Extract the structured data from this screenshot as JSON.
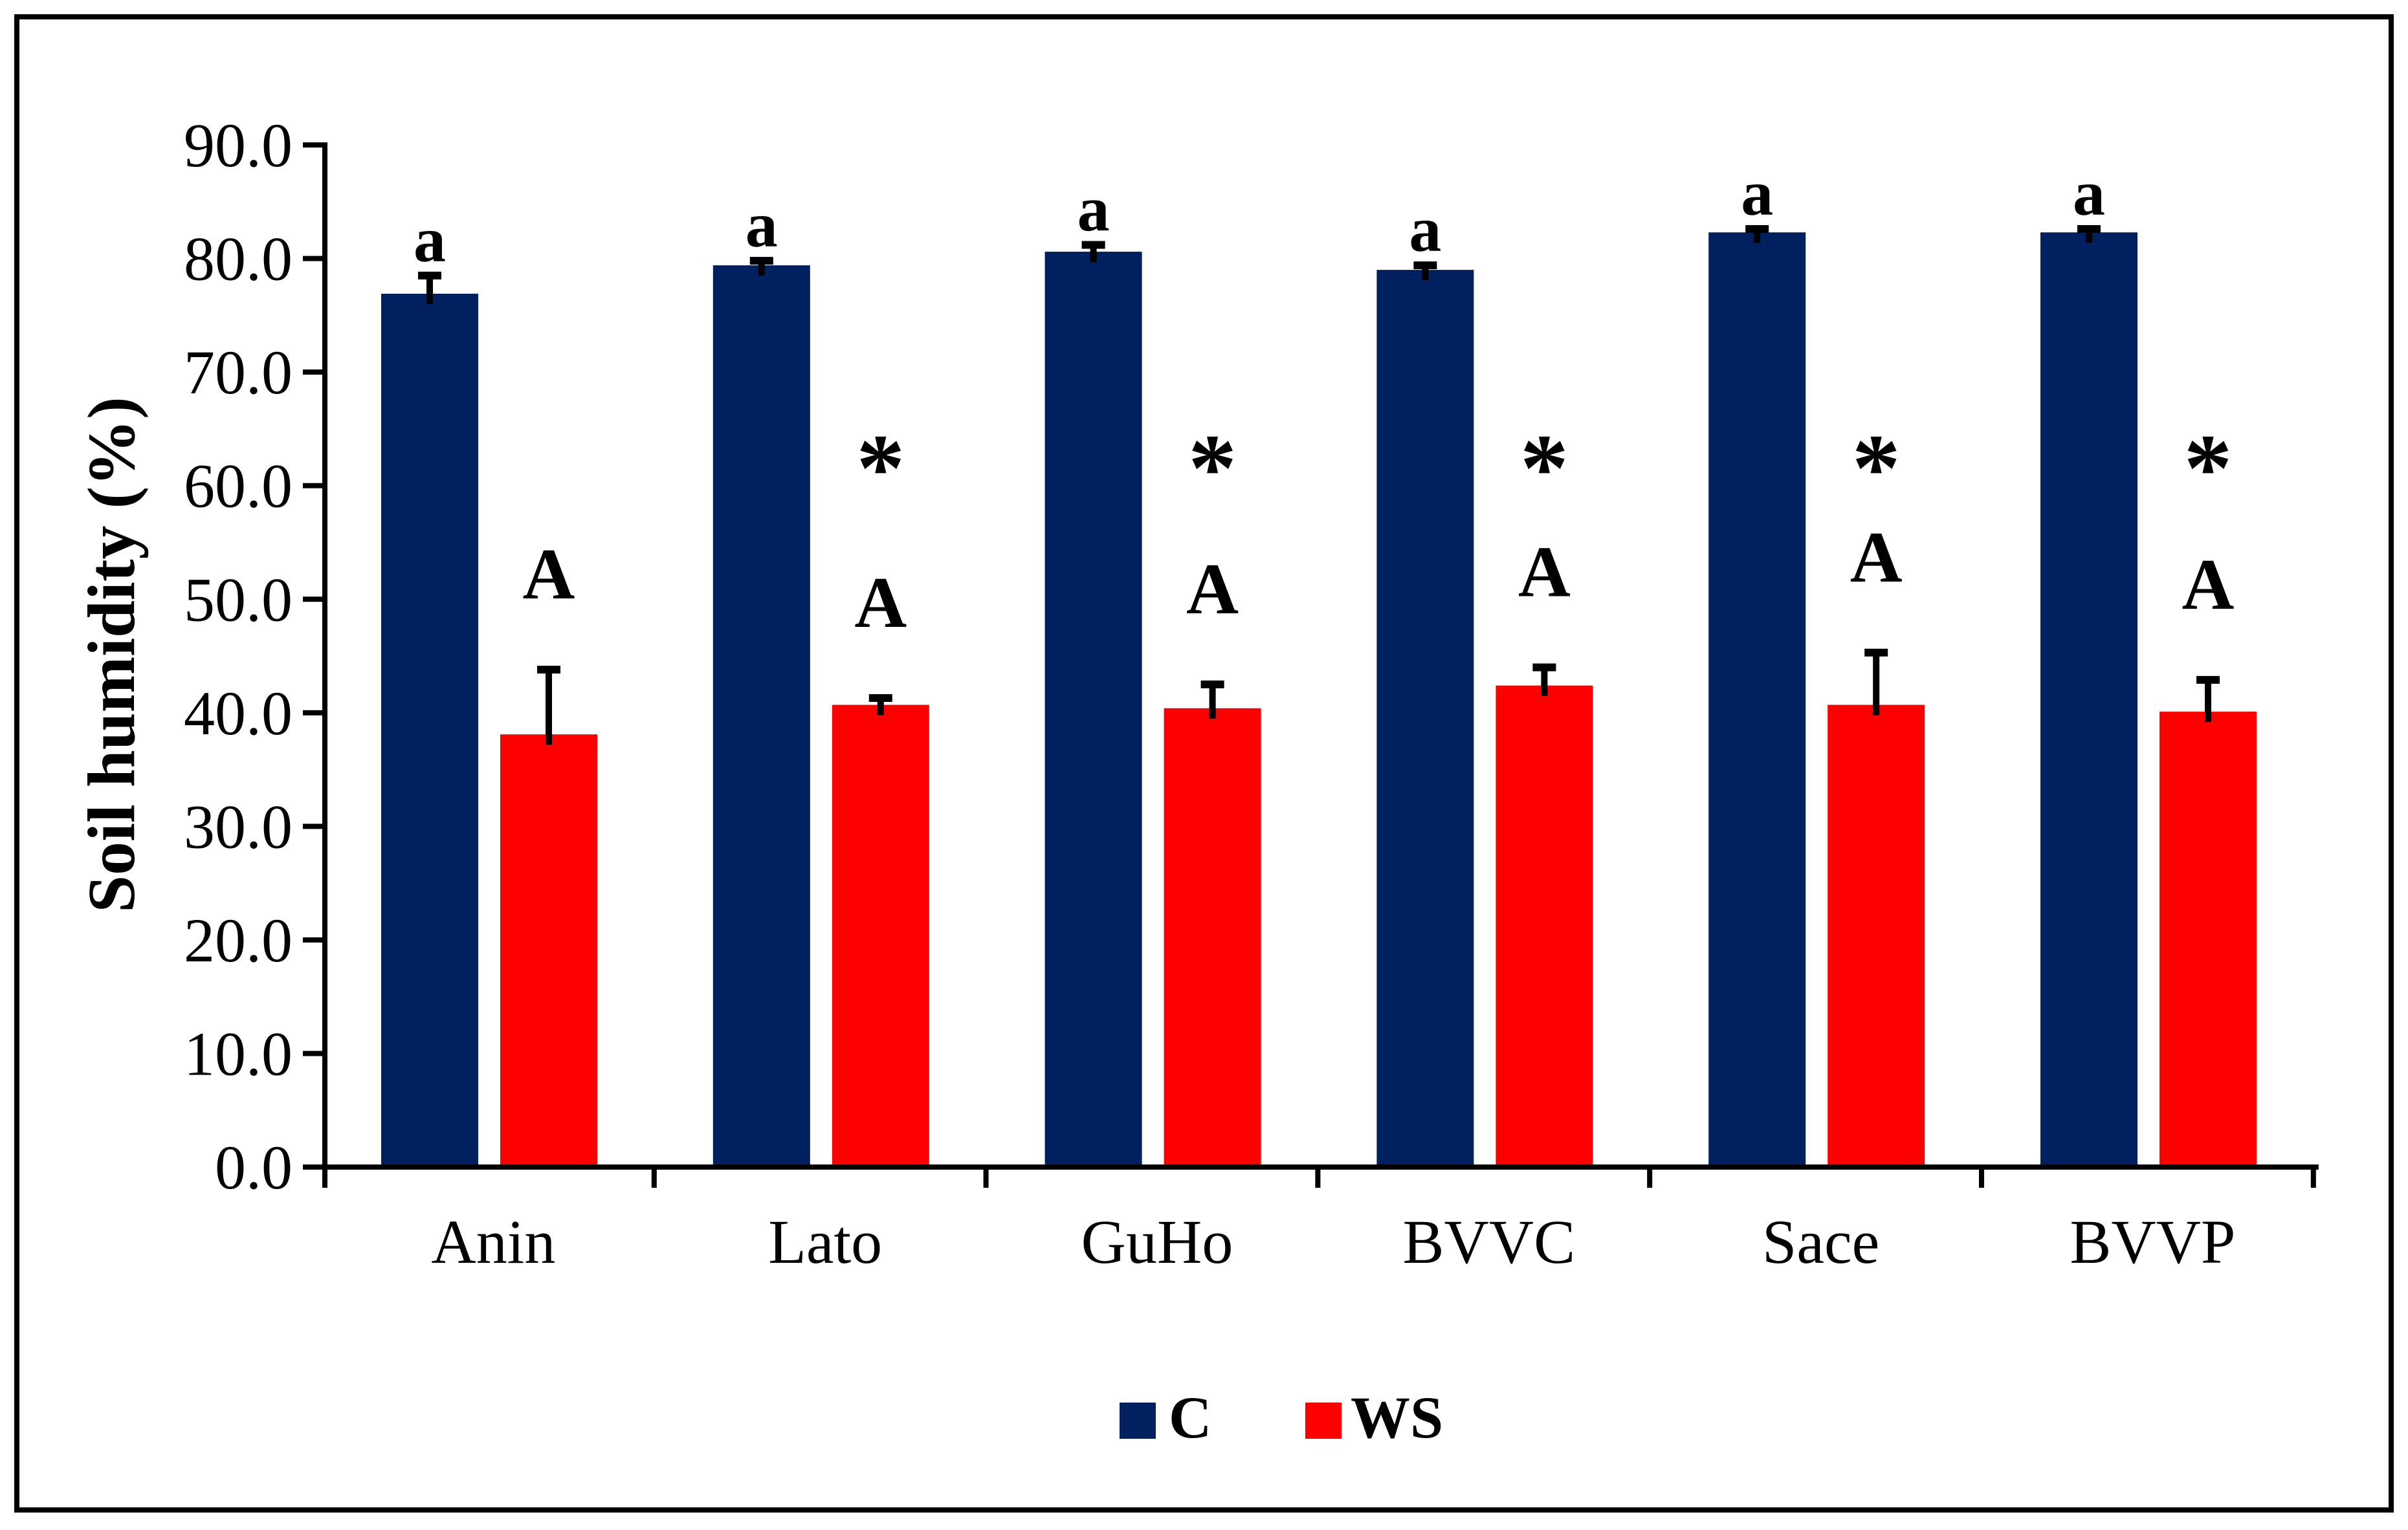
{
  "figure": {
    "background": "#ffffff",
    "border_color": "#000000",
    "axis_color": "#000000"
  },
  "chart_data": {
    "type": "bar",
    "title": "",
    "xlabel": "",
    "ylabel": "Soil humidity (%)",
    "ylim": [
      0,
      90
    ],
    "ytick_step": 10,
    "ytick_labels": [
      "0.0",
      "10.0",
      "20.0",
      "30.0",
      "40.0",
      "50.0",
      "60.0",
      "70.0",
      "80.0",
      "90.0"
    ],
    "grid": false,
    "legend_position": "bottom",
    "categories": [
      "Anin",
      "Lato",
      "GuHo",
      "BVVC",
      "Sace",
      "BVVP"
    ],
    "series": [
      {
        "name": "C",
        "color": "#002060",
        "values": [
          76.9,
          79.4,
          80.6,
          79.0,
          82.3,
          82.3
        ],
        "errors": [
          1.6,
          0.4,
          0.6,
          0.4,
          0.3,
          0.3
        ],
        "bar_labels": [
          "a",
          "a",
          "a",
          "a",
          "a",
          "a"
        ]
      },
      {
        "name": "WS",
        "color": "#FF0000",
        "values": [
          38.1,
          40.7,
          40.4,
          42.4,
          40.7,
          40.1
        ],
        "errors": [
          5.7,
          0.6,
          2.1,
          1.6,
          4.6,
          2.8
        ],
        "bar_labels": [
          "A",
          "A",
          "A",
          "A",
          "A",
          "A"
        ],
        "sig_markers": [
          "",
          "*",
          "*",
          "*",
          "*",
          "*"
        ]
      }
    ],
    "annotations": {
      "c_letter": "a",
      "ws_letter": "A",
      "sig_marker": "*",
      "sig_marker_height_units": 62.7
    }
  }
}
